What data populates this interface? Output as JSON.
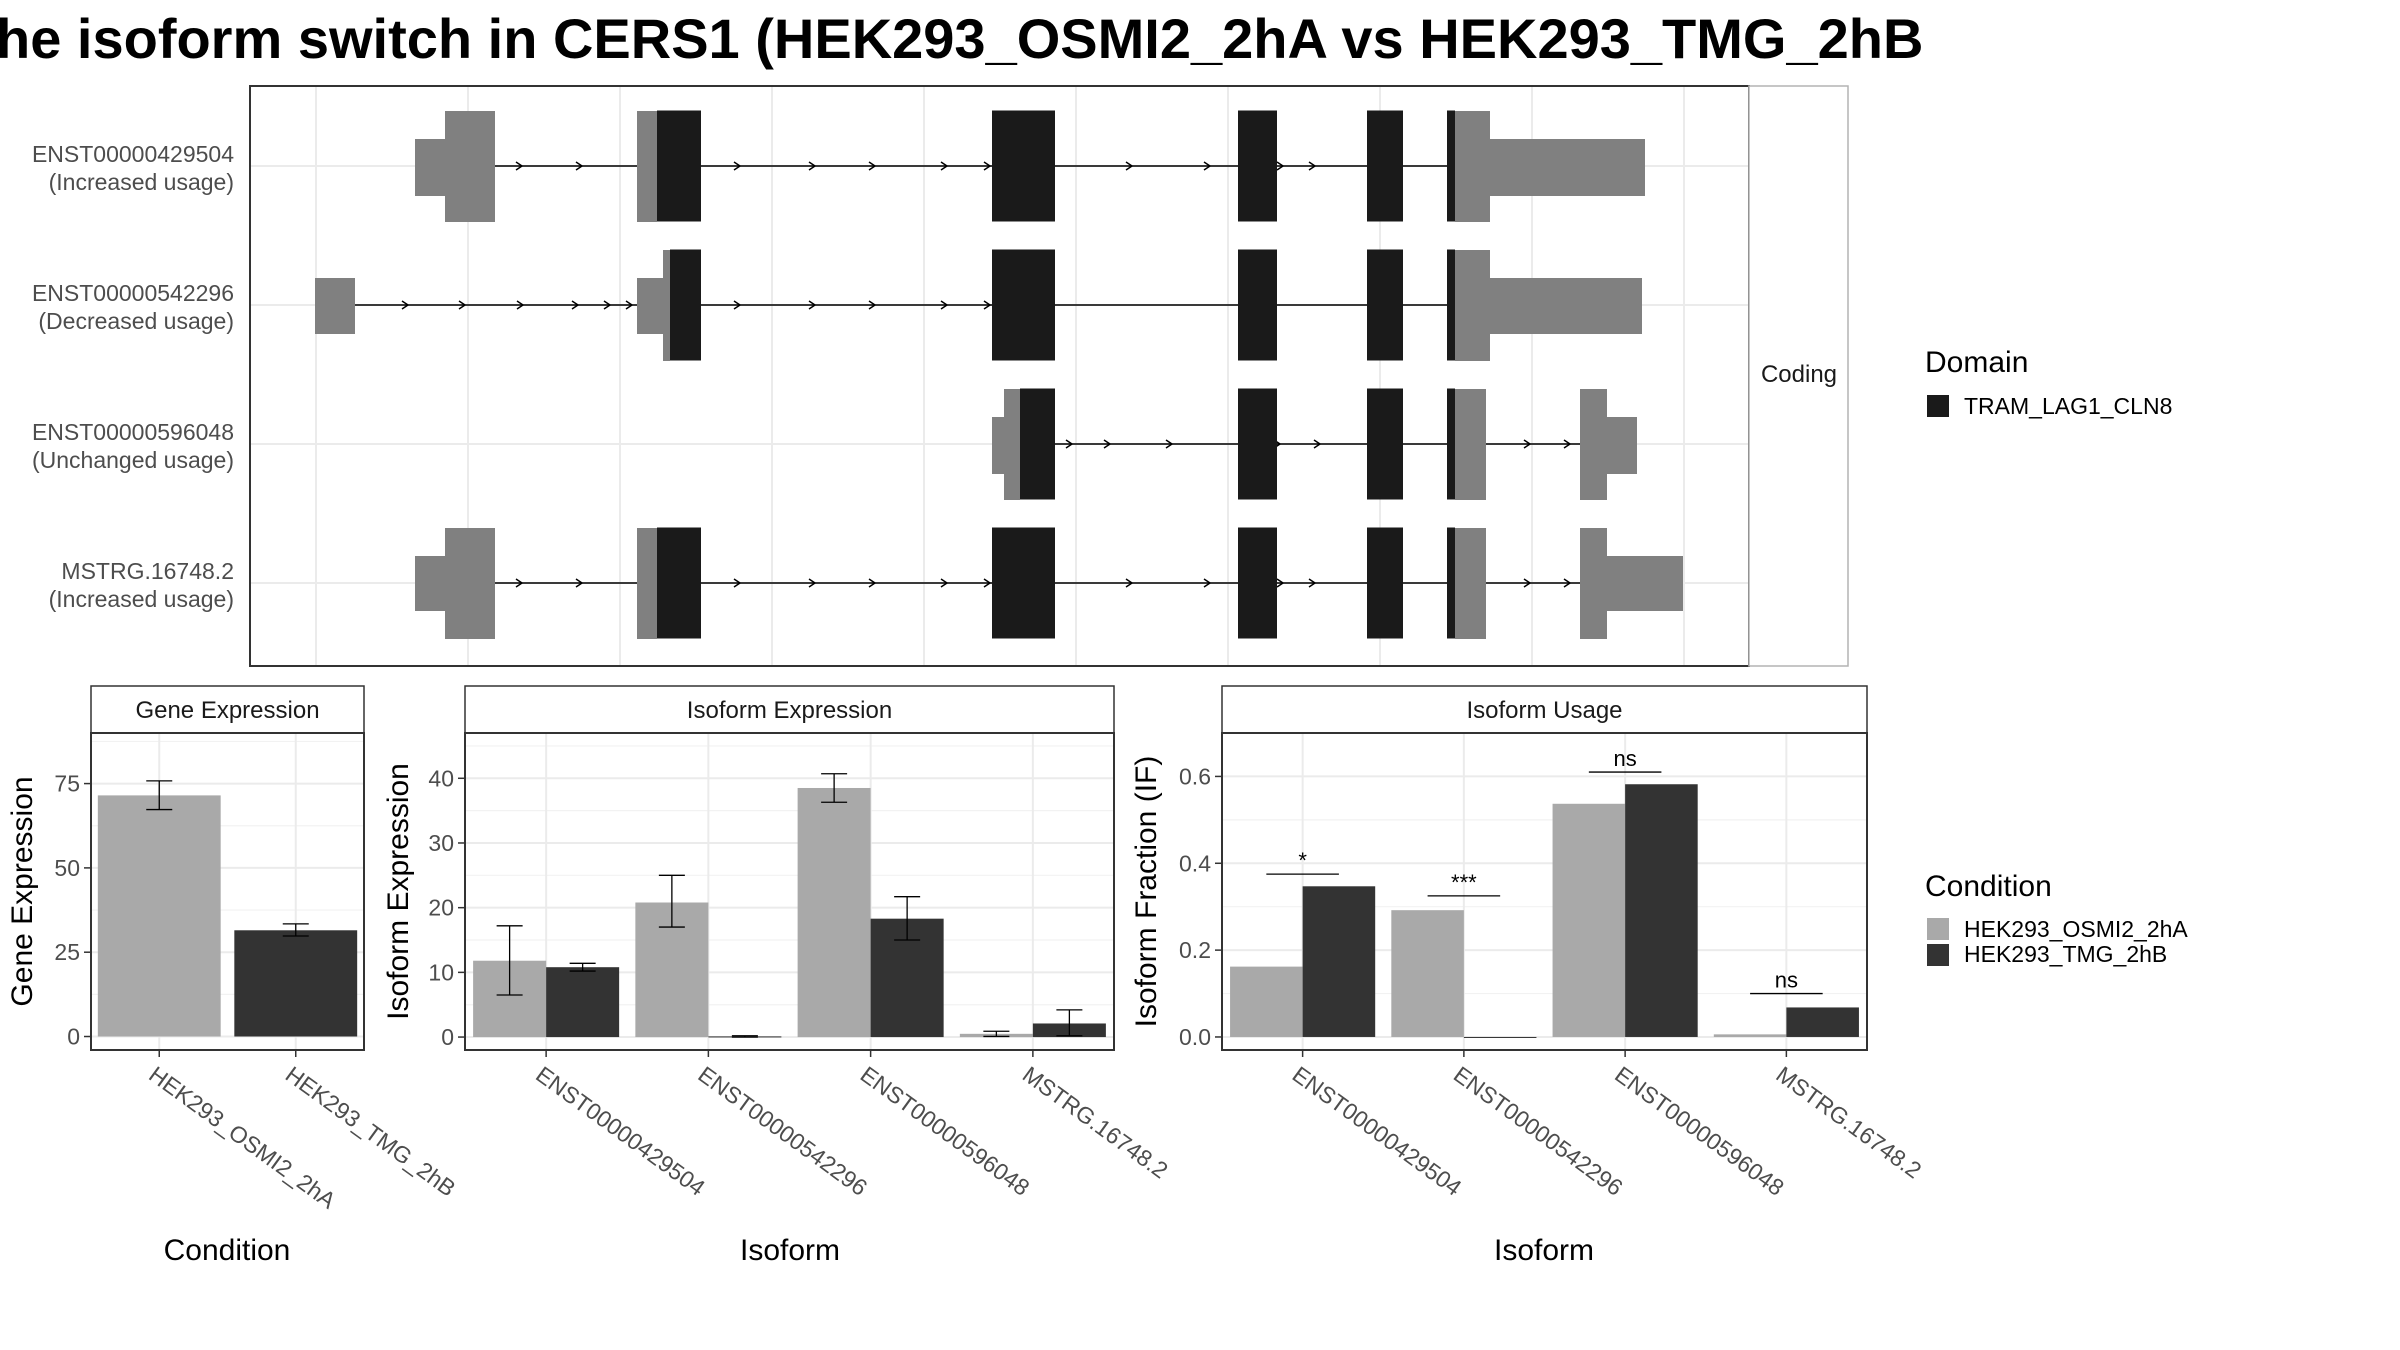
{
  "title": "he isoform switch in CERS1 (HEK293_OSMI2_2hA vs HEK293_TMG_2hB",
  "colors": {
    "condition_a": "#a9a9a9",
    "condition_b": "#333333",
    "domain": "#1a1a1a",
    "utr": "#808080",
    "grid": "#ebebeb"
  },
  "structure": {
    "strip_label": "Coding",
    "isoforms": [
      {
        "id": "ENST00000429504",
        "status": "(Increased usage)"
      },
      {
        "id": "ENST00000542296",
        "status": "(Decreased usage)"
      },
      {
        "id": "ENST00000596048",
        "status": "(Unchanged usage)"
      },
      {
        "id": "MSTRG.16748.2",
        "status": "(Increased usage)"
      }
    ]
  },
  "legends": {
    "domain": {
      "title": "Domain",
      "items": [
        "TRAM_LAG1_CLN8"
      ]
    },
    "condition": {
      "title": "Condition",
      "items": [
        "HEK293_OSMI2_2hA",
        "HEK293_TMG_2hB"
      ]
    }
  },
  "chart_data": [
    {
      "type": "bar",
      "panel": "Gene Expression",
      "xlabel": "Condition",
      "ylabel": "Gene Expression",
      "categories": [
        "HEK293_OSMI2_2hA",
        "HEK293_TMG_2hB"
      ],
      "values": [
        71.5,
        31.5
      ],
      "error": [
        [
          67.3,
          75.8
        ],
        [
          29.8,
          33.4
        ]
      ],
      "ylim": [
        -4,
        90
      ],
      "yticks": [
        0,
        25,
        50,
        75
      ]
    },
    {
      "type": "bar",
      "panel": "Isoform Expression",
      "xlabel": "Isoform",
      "ylabel": "Isoform Expression",
      "categories": [
        "ENST00000429504",
        "ENST00000542296",
        "ENST00000596048",
        "MSTRG.16748.2"
      ],
      "series": [
        {
          "name": "HEK293_OSMI2_2hA",
          "values": [
            11.8,
            20.8,
            38.5,
            0.5
          ],
          "error": [
            [
              6.5,
              17.2
            ],
            [
              17.0,
              25.0
            ],
            [
              36.3,
              40.7
            ],
            [
              0.1,
              0.9
            ]
          ]
        },
        {
          "name": "HEK293_TMG_2hB",
          "values": [
            10.8,
            0.1,
            18.3,
            2.1
          ],
          "error": [
            [
              10.2,
              11.4
            ],
            [
              0.0,
              0.2
            ],
            [
              15.0,
              21.7
            ],
            [
              0.2,
              4.2
            ]
          ]
        }
      ],
      "ylim": [
        -2,
        47
      ],
      "yticks": [
        0,
        10,
        20,
        30,
        40
      ]
    },
    {
      "type": "bar",
      "panel": "Isoform Usage",
      "xlabel": "Isoform",
      "ylabel": "Isoform Fraction (IF)",
      "categories": [
        "ENST00000429504",
        "ENST00000542296",
        "ENST00000596048",
        "MSTRG.16748.2"
      ],
      "series": [
        {
          "name": "HEK293_OSMI2_2hA",
          "values": [
            0.162,
            0.292,
            0.537,
            0.006
          ]
        },
        {
          "name": "HEK293_TMG_2hB",
          "values": [
            0.347,
            0.0,
            0.582,
            0.068
          ]
        }
      ],
      "significance": [
        "*",
        "***",
        "ns",
        "ns"
      ],
      "sig_level": [
        0.375,
        0.325,
        0.61,
        0.1
      ],
      "ylim": [
        -0.03,
        0.7
      ],
      "yticks": [
        0.0,
        0.2,
        0.4,
        0.6
      ],
      "ytick_labels": [
        "0.0",
        "0.2",
        "0.4",
        "0.6"
      ]
    }
  ]
}
